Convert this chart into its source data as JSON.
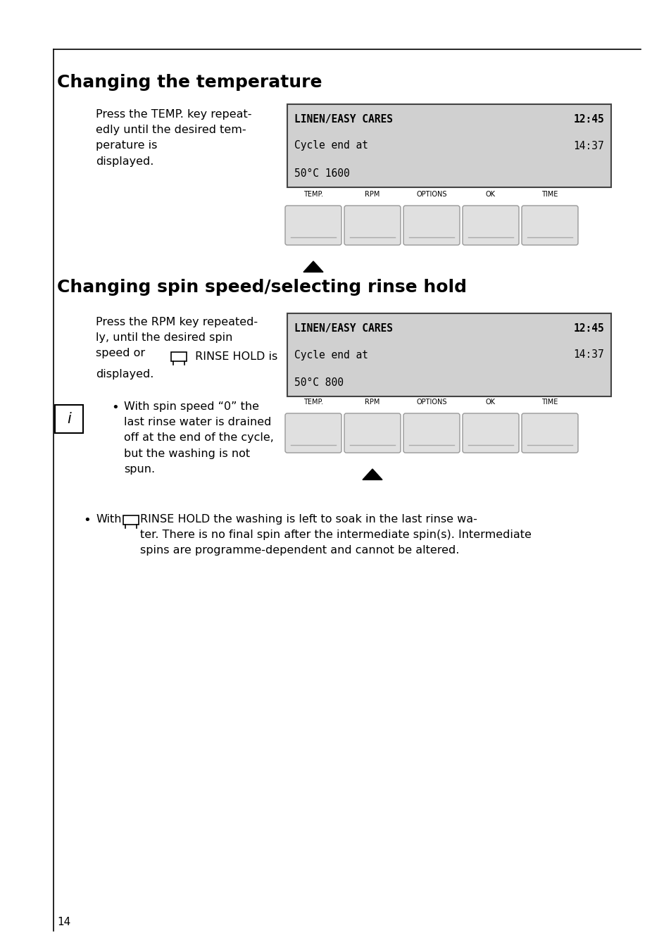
{
  "page_bg": "#ffffff",
  "page_num": "14",
  "border_color": "#000000",
  "section1_title": "Changing the temperature",
  "section1_title_fontsize": 18,
  "section1_body_fontsize": 11.5,
  "section1_body": "Press the TEMP. key repeat-\nedly until the desired tem-\nperature is\ndisplayed.",
  "display1_line1": "LINEN/EASY CARES",
  "display1_time1": "12:45",
  "display1_line2": "Cycle end at",
  "display1_time2": "14:37",
  "display1_line3": "50°C 1600",
  "display_bg": "#d0d0d0",
  "display_font_size": 10.5,
  "button_labels": [
    "TEMP.",
    "RPM",
    "OPTIONS",
    "OK",
    "TIME"
  ],
  "button_label_fontsize": 7,
  "button_bg": "#e0e0e0",
  "button_border": "#999999",
  "section2_title": "Changing spin speed/selecting rinse hold",
  "section2_title_fontsize": 18,
  "section2_body_fontsize": 11.5,
  "display2_line1": "LINEN/EASY CARES",
  "display2_time1": "12:45",
  "display2_line2": "Cycle end at",
  "display2_time2": "14:37",
  "display2_line3": "50°C 800",
  "bullet1_text": "With spin speed “0” the\nlast rinse water is drained\noff at the end of the cycle,\nbut the washing is not\nspun.",
  "bullet2_text_after": "RINSE HOLD the washing is left to soak in the last rinse wa-\nter. There is no final spin after the intermediate spin(s). Intermediate\nspins are programme-dependent and cannot be altered.",
  "page_num_fontsize": 11
}
